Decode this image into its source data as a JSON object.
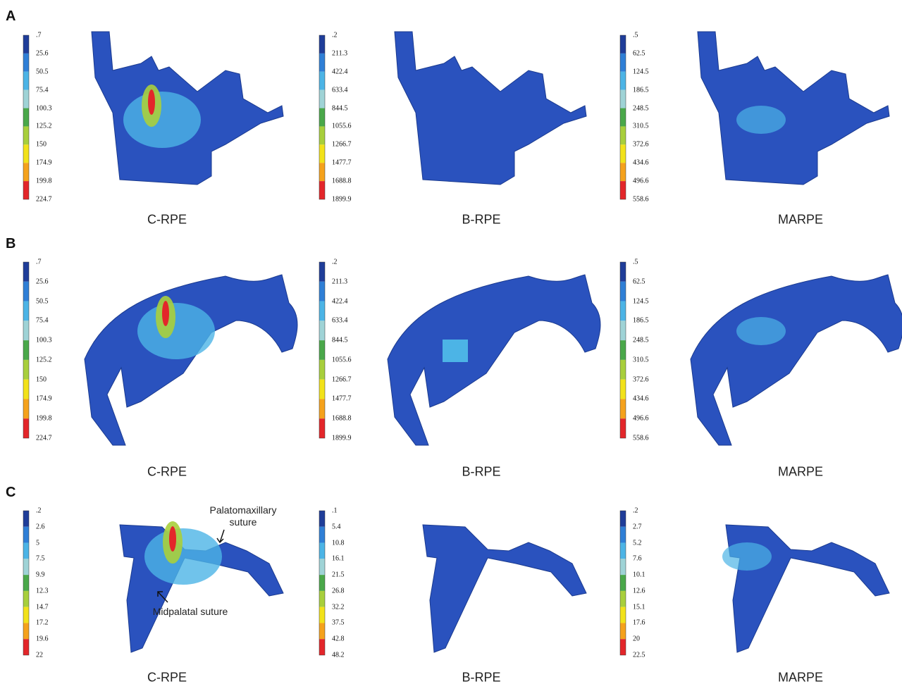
{
  "rows": [
    {
      "label": "A",
      "panels": [
        {
          "caption": "C-RPE",
          "scale": [
            ".7",
            "25.6",
            "50.5",
            "75.4",
            "100.3",
            "125.2",
            "150",
            "174.9",
            "199.8",
            "224.7"
          ]
        },
        {
          "caption": "B-RPE",
          "scale": [
            ".2",
            "211.3",
            "422.4",
            "633.4",
            "844.5",
            "1055.6",
            "1266.7",
            "1477.7",
            "1688.8",
            "1899.9"
          ]
        },
        {
          "caption": "MARPE",
          "scale": [
            ".5",
            "62.5",
            "124.5",
            "186.5",
            "248.5",
            "310.5",
            "372.6",
            "434.6",
            "496.6",
            "558.6"
          ]
        }
      ]
    },
    {
      "label": "B",
      "panels": [
        {
          "caption": "C-RPE",
          "scale": [
            ".7",
            "25.6",
            "50.5",
            "75.4",
            "100.3",
            "125.2",
            "150",
            "174.9",
            "199.8",
            "224.7"
          ]
        },
        {
          "caption": "B-RPE",
          "scale": [
            ".2",
            "211.3",
            "422.4",
            "633.4",
            "844.5",
            "1055.6",
            "1266.7",
            "1477.7",
            "1688.8",
            "1899.9"
          ]
        },
        {
          "caption": "MARPE",
          "scale": [
            ".5",
            "62.5",
            "124.5",
            "186.5",
            "248.5",
            "310.5",
            "372.6",
            "434.6",
            "496.6",
            "558.6"
          ]
        }
      ]
    },
    {
      "label": "C",
      "panels": [
        {
          "caption": "C-RPE",
          "scale": [
            ".2",
            "2.6",
            "5",
            "7.5",
            "9.9",
            "12.3",
            "14.7",
            "17.2",
            "19.6",
            "22"
          ],
          "annotations": [
            "Palatomaxillary suture",
            "Midpalatal suture"
          ]
        },
        {
          "caption": "B-RPE",
          "scale": [
            ".1",
            "5.4",
            "10.8",
            "16.1",
            "21.5",
            "26.8",
            "32.2",
            "37.5",
            "42.8",
            "48.2"
          ]
        },
        {
          "caption": "MARPE",
          "scale": [
            ".2",
            "2.7",
            "5.2",
            "7.6",
            "10.1",
            "12.6",
            "15.1",
            "17.6",
            "20",
            "22.5"
          ]
        }
      ]
    }
  ]
}
